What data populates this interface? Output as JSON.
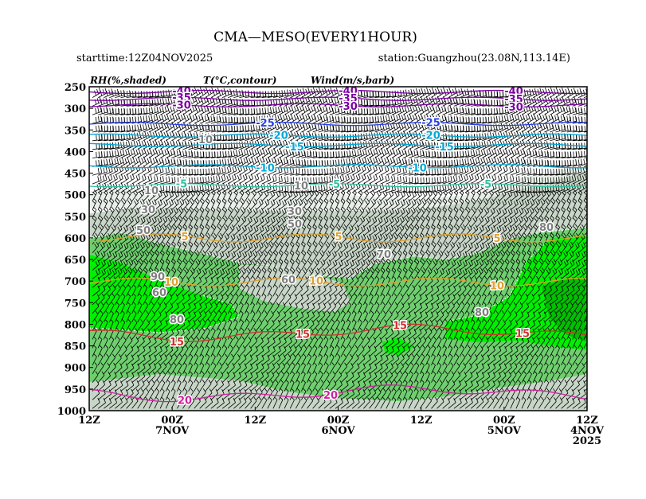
{
  "title": "CMA—MESO(EVERY1HOUR)",
  "starttime": "starttime:12Z04NOV2025",
  "station": "station:Guangzhou(23.08N,113.14E)",
  "legend": {
    "rh": "RH(%,shaded)",
    "temp": "T(°C,contour)",
    "wind": "Wind(m/s,barb)"
  },
  "colors": {
    "rh_60": "#c8d6c8",
    "rh_70": "#c8d6c8",
    "rh_80": "#6fcf6f",
    "rh_90": "#00f000",
    "rh_95": "#00c000",
    "t_neg40": "#7a00a0",
    "t_neg25": "#2840e0",
    "t_neg15": "#00a8d8",
    "t_neg5": "#30c0a0",
    "t_pos5": "#e0a030",
    "t_pos15": "#d03030",
    "t_pos20": "#d020a0"
  },
  "chart_data": {
    "type": "time-height cross-section",
    "yticks": [
      250,
      300,
      350,
      400,
      450,
      500,
      550,
      600,
      650,
      700,
      750,
      800,
      850,
      900,
      950,
      1000
    ],
    "ylim": [
      250,
      1000
    ],
    "xticks": [
      {
        "l1": "12Z",
        "l2": "",
        "l3": ""
      },
      {
        "l1": "00Z",
        "l2": "7NOV",
        "l3": ""
      },
      {
        "l1": "12Z",
        "l2": "",
        "l3": ""
      },
      {
        "l1": "00Z",
        "l2": "6NOV",
        "l3": ""
      },
      {
        "l1": "12Z",
        "l2": "",
        "l3": ""
      },
      {
        "l1": "00Z",
        "l2": "5NOV",
        "l3": ""
      },
      {
        "l1": "12Z",
        "l2": "4NOV",
        "l3": "2025"
      }
    ],
    "temperature_contours": [
      {
        "value": "-40",
        "p": 262
      },
      {
        "value": "-35",
        "p": 278
      },
      {
        "value": "-30",
        "p": 293
      },
      {
        "value": "-25",
        "p": 336
      },
      {
        "value": "-20",
        "p": 363
      },
      {
        "value": "-15",
        "p": 385
      },
      {
        "value": "-10",
        "p": 434
      },
      {
        "value": "-5",
        "p": 478
      },
      {
        "value": "5",
        "p": 600
      },
      {
        "value": "10",
        "p": 702
      },
      {
        "value": "15",
        "p": 820
      },
      {
        "value": "20",
        "p": 960
      }
    ],
    "rh_labels": [
      "10",
      "30",
      "50",
      "60",
      "70",
      "80",
      "90"
    ]
  }
}
